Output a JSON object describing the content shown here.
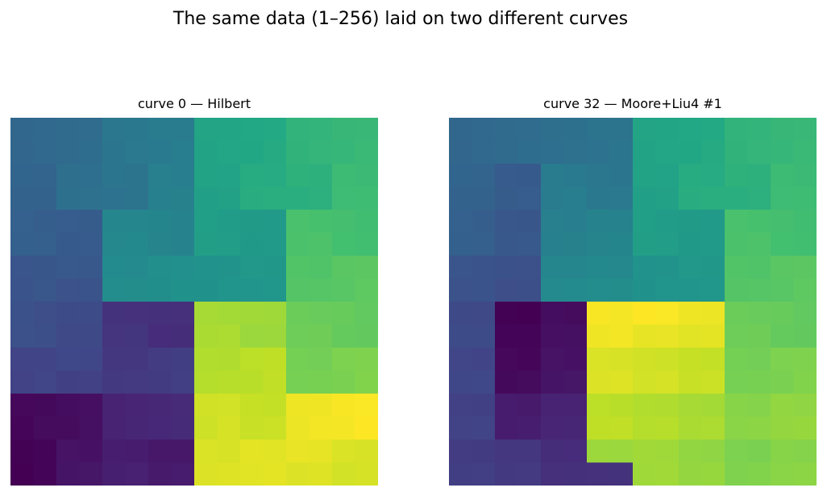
{
  "suptitle": "The same data (1–256) laid on two different curves",
  "chart_data": [
    {
      "type": "heatmap",
      "title": "curve 0 — Hilbert",
      "colormap": "viridis",
      "vmin": 1,
      "vmax": 256,
      "axes_visible": false,
      "grid": false,
      "rows": 16,
      "cols": 16,
      "values": [
        [
          86,
          87,
          90,
          91,
          102,
          103,
          106,
          107,
          150,
          151,
          154,
          155,
          166,
          167,
          170,
          171
        ],
        [
          85,
          88,
          89,
          92,
          101,
          104,
          105,
          108,
          149,
          152,
          153,
          156,
          165,
          168,
          169,
          172
        ],
        [
          84,
          83,
          94,
          93,
          100,
          99,
          110,
          109,
          148,
          147,
          158,
          157,
          164,
          163,
          174,
          173
        ],
        [
          81,
          82,
          95,
          96,
          97,
          98,
          111,
          112,
          145,
          146,
          159,
          160,
          161,
          162,
          175,
          176
        ],
        [
          80,
          77,
          76,
          75,
          118,
          117,
          116,
          113,
          144,
          141,
          140,
          139,
          182,
          181,
          180,
          177
        ],
        [
          79,
          78,
          73,
          74,
          119,
          120,
          115,
          114,
          143,
          142,
          137,
          138,
          183,
          184,
          179,
          178
        ],
        [
          68,
          69,
          72,
          71,
          122,
          121,
          126,
          127,
          130,
          131,
          136,
          135,
          186,
          185,
          190,
          191
        ],
        [
          67,
          70,
          65,
          66,
          123,
          124,
          125,
          128,
          129,
          132,
          133,
          134,
          187,
          188,
          189,
          192
        ],
        [
          64,
          61,
          60,
          59,
          38,
          37,
          36,
          35,
          222,
          221,
          220,
          219,
          198,
          197,
          196,
          193
        ],
        [
          63,
          62,
          57,
          58,
          39,
          40,
          33,
          34,
          223,
          224,
          217,
          218,
          199,
          200,
          195,
          194
        ],
        [
          52,
          53,
          56,
          55,
          42,
          41,
          46,
          47,
          226,
          225,
          230,
          231,
          202,
          201,
          206,
          207
        ],
        [
          51,
          54,
          49,
          50,
          43,
          44,
          45,
          48,
          227,
          228,
          229,
          232,
          203,
          204,
          205,
          208
        ],
        [
          6,
          7,
          10,
          11,
          26,
          27,
          30,
          31,
          238,
          239,
          234,
          233,
          250,
          251,
          254,
          255
        ],
        [
          5,
          8,
          9,
          12,
          25,
          28,
          29,
          32,
          237,
          240,
          235,
          236,
          249,
          252,
          253,
          256
        ],
        [
          2,
          3,
          14,
          13,
          22,
          21,
          18,
          17,
          242,
          241,
          246,
          245,
          248,
          247,
          242,
          241
        ],
        [
          1,
          4,
          15,
          16,
          23,
          24,
          19,
          20,
          243,
          244,
          245,
          246,
          243,
          244,
          239,
          240
        ]
      ]
    },
    {
      "type": "heatmap",
      "title": "curve 32 — Moore+Liu4 #1",
      "colormap": "viridis",
      "vmin": 1,
      "vmax": 256,
      "axes_visible": false,
      "grid": false,
      "rows": 16,
      "cols": 16,
      "values": [
        [
          86,
          87,
          90,
          91,
          94,
          95,
          98,
          99,
          150,
          151,
          154,
          155,
          166,
          167,
          170,
          171
        ],
        [
          85,
          88,
          89,
          92,
          93,
          96,
          97,
          100,
          149,
          152,
          153,
          156,
          165,
          168,
          169,
          172
        ],
        [
          84,
          83,
          74,
          73,
          106,
          105,
          102,
          101,
          148,
          147,
          158,
          157,
          164,
          163,
          174,
          173
        ],
        [
          81,
          82,
          75,
          76,
          107,
          108,
          103,
          104,
          145,
          146,
          159,
          160,
          161,
          162,
          175,
          176
        ],
        [
          80,
          77,
          70,
          69,
          110,
          109,
          114,
          113,
          144,
          141,
          140,
          139,
          182,
          181,
          180,
          177
        ],
        [
          79,
          78,
          71,
          72,
          111,
          112,
          115,
          116,
          143,
          142,
          137,
          138,
          183,
          184,
          179,
          178
        ],
        [
          68,
          67,
          64,
          63,
          118,
          117,
          120,
          119,
          130,
          131,
          136,
          135,
          186,
          185,
          190,
          191
        ],
        [
          65,
          66,
          61,
          62,
          121,
          122,
          123,
          124,
          129,
          132,
          133,
          134,
          187,
          188,
          189,
          192
        ],
        [
          58,
          57,
          2,
          1,
          10,
          9,
          254,
          253,
          256,
          255,
          250,
          249,
          198,
          197,
          196,
          193
        ],
        [
          59,
          60,
          3,
          4,
          11,
          12,
          251,
          252,
          247,
          248,
          245,
          246,
          199,
          200,
          195,
          194
        ],
        [
          54,
          53,
          6,
          5,
          14,
          13,
          242,
          241,
          238,
          237,
          234,
          233,
          202,
          201,
          206,
          207
        ],
        [
          55,
          56,
          7,
          8,
          15,
          16,
          243,
          244,
          239,
          240,
          235,
          236,
          203,
          204,
          205,
          208
        ],
        [
          50,
          49,
          20,
          19,
          26,
          25,
          230,
          229,
          226,
          225,
          222,
          221,
          210,
          209,
          214,
          213
        ],
        [
          51,
          52,
          21,
          22,
          27,
          28,
          231,
          232,
          227,
          228,
          223,
          224,
          211,
          212,
          215,
          216
        ],
        [
          46,
          45,
          42,
          41,
          34,
          33,
          218,
          217,
          220,
          219,
          214,
          213,
          206,
          205,
          210,
          209
        ],
        [
          47,
          48,
          43,
          44,
          35,
          36,
          37,
          38,
          219,
          220,
          215,
          216,
          207,
          208,
          211,
          212
        ]
      ]
    }
  ]
}
